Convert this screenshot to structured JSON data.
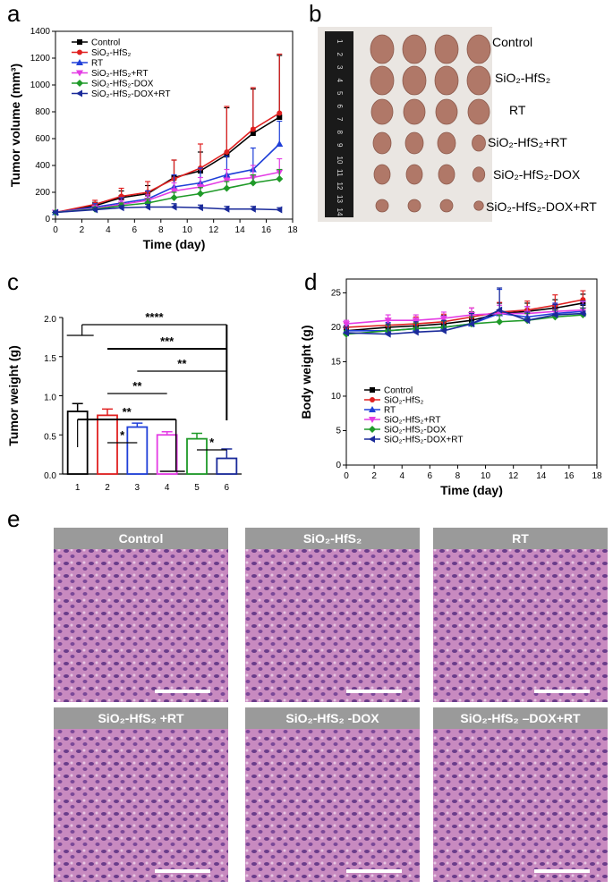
{
  "panel_labels": {
    "a": "a",
    "b": "b",
    "c": "c",
    "d": "d",
    "e": "e"
  },
  "colors": {
    "Control": "#000000",
    "SiO2-HfS2": "#e02020",
    "RT": "#1f3fd8",
    "SiO2-HfS2+RT": "#e43ce4",
    "SiO2-HfS2-DOX": "#1f9a28",
    "SiO2-HfS2-DOX+RT": "#1a2a9a",
    "he_bg": "#c57fb9",
    "he_label_bg": "#9a9a9a"
  },
  "legend_labels": [
    "Control",
    "SiO₂-HfS₂",
    "RT",
    "SiO₂-HfS₂+RT",
    "SiO₂-HfS₂-DOX",
    "SiO₂-HfS₂-DOX+RT"
  ],
  "chart_data": [
    {
      "id": "a",
      "type": "line",
      "title": "",
      "xlabel": "Time (day)",
      "ylabel": "Tumor volume (mm³)",
      "xlim": [
        0,
        18
      ],
      "ylim": [
        0,
        1400
      ],
      "xticks": [
        0,
        2,
        4,
        6,
        8,
        10,
        12,
        14,
        16,
        18
      ],
      "yticks": [
        0,
        200,
        400,
        600,
        800,
        1000,
        1200,
        1400
      ],
      "x": [
        0,
        3,
        5,
        7,
        9,
        11,
        13,
        15,
        17
      ],
      "series": [
        {
          "name": "Control",
          "values": [
            50,
            100,
            160,
            190,
            310,
            360,
            480,
            640,
            760
          ],
          "errors": [
            10,
            25,
            50,
            60,
            130,
            140,
            350,
            330,
            460
          ]
        },
        {
          "name": "SiO2-HfS2",
          "values": [
            50,
            110,
            170,
            200,
            300,
            380,
            500,
            670,
            790
          ],
          "errors": [
            10,
            30,
            60,
            80,
            140,
            180,
            340,
            310,
            440
          ]
        },
        {
          "name": "RT",
          "values": [
            50,
            90,
            120,
            150,
            240,
            270,
            330,
            370,
            560
          ],
          "errors": [
            10,
            25,
            40,
            60,
            90,
            110,
            140,
            160,
            170
          ]
        },
        {
          "name": "SiO2-HfS2+RT",
          "values": [
            50,
            80,
            110,
            140,
            210,
            240,
            290,
            310,
            350
          ],
          "errors": [
            10,
            20,
            30,
            40,
            60,
            70,
            80,
            90,
            100
          ]
        },
        {
          "name": "SiO2-HfS2-DOX",
          "values": [
            50,
            75,
            100,
            120,
            160,
            190,
            230,
            270,
            300
          ],
          "errors": [
            10,
            15,
            20,
            30,
            40,
            45,
            50,
            60,
            70
          ]
        },
        {
          "name": "SiO2-HfS2-DOX+RT",
          "values": [
            50,
            70,
            85,
            90,
            90,
            85,
            75,
            75,
            70
          ],
          "errors": [
            10,
            15,
            15,
            20,
            25,
            20,
            20,
            20,
            15
          ]
        }
      ],
      "legend_position": "top-left"
    },
    {
      "id": "c",
      "type": "bar",
      "title": "",
      "xlabel": "",
      "ylabel": "Tumor weight (g)",
      "categories": [
        "1",
        "2",
        "3",
        "4",
        "5",
        "6"
      ],
      "values": [
        0.8,
        0.75,
        0.6,
        0.5,
        0.45,
        0.2
      ],
      "errors": [
        0.1,
        0.08,
        0.05,
        0.04,
        0.07,
        0.12
      ],
      "bar_colors": [
        "#000000",
        "#e02020",
        "#1f3fd8",
        "#e43ce4",
        "#1f9a28",
        "#1a2a9a"
      ],
      "ylim": [
        0,
        2.0
      ],
      "yticks": [
        0.0,
        0.5,
        1.0,
        1.5,
        2.0
      ],
      "significance": [
        "****",
        "***",
        "**",
        "**",
        "**",
        "*",
        "*"
      ]
    },
    {
      "id": "d",
      "type": "line",
      "title": "",
      "xlabel": "Time (day)",
      "ylabel": "Body weight (g)",
      "xlim": [
        0,
        18
      ],
      "ylim": [
        0,
        27
      ],
      "xticks": [
        0,
        2,
        4,
        6,
        8,
        10,
        12,
        14,
        16,
        18
      ],
      "yticks": [
        0,
        5,
        10,
        15,
        20,
        25
      ],
      "x": [
        0,
        3,
        5,
        7,
        9,
        11,
        13,
        15,
        17
      ],
      "series": [
        {
          "name": "Control",
          "values": [
            19.5,
            20.0,
            20.2,
            20.5,
            21.0,
            22.0,
            22.3,
            22.8,
            23.5
          ],
          "errors": [
            0.6,
            1.0,
            1.0,
            1.2,
            1.2,
            1.5,
            1.2,
            1.2,
            1.3
          ]
        },
        {
          "name": "SiO2-HfS2",
          "values": [
            20.0,
            20.3,
            20.5,
            20.8,
            21.5,
            22.2,
            22.5,
            23.2,
            24.0
          ],
          "errors": [
            0.6,
            1.0,
            1.0,
            1.1,
            1.3,
            1.4,
            1.3,
            1.5,
            1.3
          ]
        },
        {
          "name": "RT",
          "values": [
            19.5,
            19.5,
            19.8,
            20.0,
            20.5,
            22.0,
            21.5,
            22.0,
            22.3
          ],
          "errors": [
            0.8,
            1.2,
            1.2,
            1.5,
            1.5,
            3.5,
            1.5,
            1.5,
            1.5
          ]
        },
        {
          "name": "SiO2-HfS2+RT",
          "values": [
            20.5,
            21.0,
            21.0,
            21.3,
            21.8,
            22.0,
            22.0,
            22.3,
            22.5
          ],
          "errors": [
            0.5,
            0.8,
            0.8,
            0.9,
            1.0,
            1.2,
            1.0,
            1.0,
            1.2
          ]
        },
        {
          "name": "SiO2-HfS2-DOX",
          "values": [
            19.0,
            19.5,
            19.8,
            20.0,
            20.5,
            20.8,
            21.0,
            21.5,
            21.8
          ],
          "errors": [
            0.5,
            0.8,
            0.8,
            0.9,
            1.0,
            1.0,
            1.0,
            1.0,
            1.0
          ]
        },
        {
          "name": "SiO2-HfS2-DOX+RT",
          "values": [
            19.2,
            19.0,
            19.3,
            19.5,
            20.5,
            22.5,
            21.0,
            21.8,
            22.0
          ],
          "errors": [
            0.8,
            1.5,
            1.5,
            1.5,
            1.5,
            3.2,
            1.2,
            1.5,
            1.3
          ]
        }
      ],
      "legend_position": "bottom-left"
    }
  ],
  "tumor_photo": {
    "row_labels": [
      "Control",
      "SiO₂-HfS₂",
      "RT",
      "SiO₂-HfS₂+RT",
      "SiO₂-HfS₂-DOX",
      "SiO₂-HfS₂-DOX+RT"
    ],
    "ruler_marks": [
      "1",
      "2",
      "3",
      "4",
      "5",
      "6",
      "7",
      "8",
      "9",
      "10",
      "11",
      "12",
      "13",
      "14"
    ]
  },
  "he_panels": [
    "Control",
    "SiO₂-HfS₂",
    "RT",
    "SiO₂-HfS₂ +RT",
    "SiO₂-HfS₂ -DOX",
    "SiO₂-HfS₂ –DOX+RT"
  ]
}
